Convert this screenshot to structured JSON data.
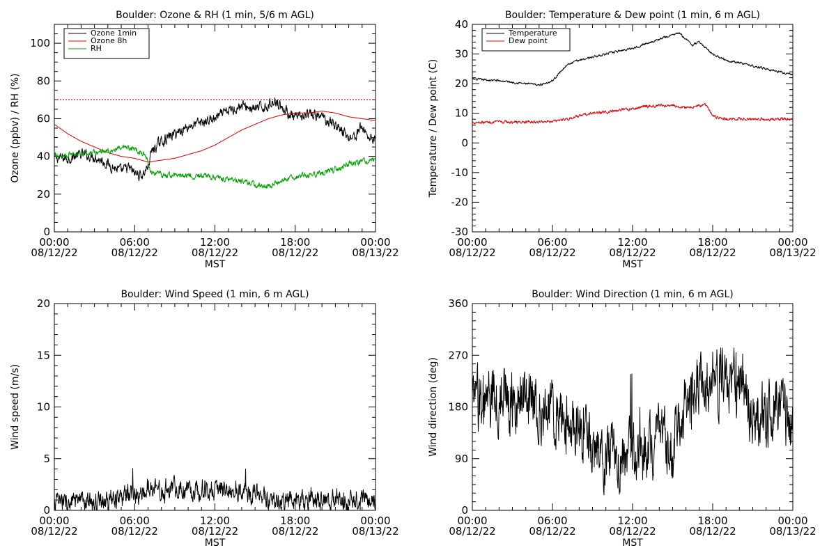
{
  "chart_data": [
    {
      "type": "line",
      "title": "Boulder: Ozone & RH (1 min, 5/6 m AGL)",
      "xlabel": "MST",
      "ylabel": "Ozone (ppbv) / RH (%)",
      "x_ticks": [
        {
          "time": "00:00",
          "date": "08/12/22"
        },
        {
          "time": "06:00",
          "date": "08/12/22"
        },
        {
          "time": "12:00",
          "date": "08/12/22"
        },
        {
          "time": "18:00",
          "date": "08/12/22"
        },
        {
          "time": "00:00",
          "date": "08/13/22"
        }
      ],
      "xlim_hours": [
        0,
        24
      ],
      "ylim": [
        0,
        110
      ],
      "y_ticks": [
        0,
        20,
        40,
        60,
        80,
        100
      ],
      "y_minor_step": 5,
      "grid": false,
      "legend_position": "top-left",
      "reference_line": {
        "y": 70,
        "color": "#dd0000",
        "style": "dotted"
      },
      "series": [
        {
          "name": "Ozone 1min",
          "color": "#000000",
          "noise": 2.2,
          "points": [
            [
              0,
              39
            ],
            [
              1,
              39
            ],
            [
              2,
              41
            ],
            [
              3,
              40
            ],
            [
              4,
              36
            ],
            [
              5,
              32
            ],
            [
              5.5,
              34
            ],
            [
              6,
              31
            ],
            [
              6.6,
              30
            ],
            [
              7,
              35
            ],
            [
              7.3,
              43
            ],
            [
              8,
              48
            ],
            [
              9,
              52
            ],
            [
              10,
              56
            ],
            [
              11,
              58
            ],
            [
              12,
              60
            ],
            [
              13,
              64
            ],
            [
              14,
              67
            ],
            [
              15,
              65
            ],
            [
              16,
              67
            ],
            [
              16.6,
              70
            ],
            [
              17,
              66
            ],
            [
              18,
              60
            ],
            [
              19,
              62
            ],
            [
              20,
              61
            ],
            [
              21,
              57
            ],
            [
              22,
              50
            ],
            [
              22.5,
              51
            ],
            [
              23,
              56
            ],
            [
              23.5,
              50
            ],
            [
              24,
              50
            ]
          ]
        },
        {
          "name": "Ozone 8h",
          "color": "#dd0000",
          "noise": 0,
          "points": [
            [
              0,
              57
            ],
            [
              1,
              52
            ],
            [
              2,
              48
            ],
            [
              3,
              45
            ],
            [
              4,
              42
            ],
            [
              5,
              40
            ],
            [
              6,
              39
            ],
            [
              7,
              37
            ],
            [
              8,
              38
            ],
            [
              9,
              39
            ],
            [
              10,
              41
            ],
            [
              11,
              43
            ],
            [
              12,
              46
            ],
            [
              13,
              50
            ],
            [
              14,
              54
            ],
            [
              15,
              57
            ],
            [
              16,
              60
            ],
            [
              17,
              62
            ],
            [
              18,
              63
            ],
            [
              19,
              63
            ],
            [
              20,
              64
            ],
            [
              21,
              63
            ],
            [
              22,
              61
            ],
            [
              23,
              60
            ],
            [
              24,
              59
            ]
          ]
        },
        {
          "name": "RH",
          "color": "#00a000",
          "noise": 1.2,
          "points": [
            [
              0,
              40
            ],
            [
              1,
              41
            ],
            [
              2,
              42
            ],
            [
              3,
              42
            ],
            [
              4,
              43
            ],
            [
              5,
              44
            ],
            [
              6,
              44
            ],
            [
              6.8,
              41
            ],
            [
              7.2,
              32
            ],
            [
              8,
              30
            ],
            [
              10,
              30
            ],
            [
              12,
              29
            ],
            [
              14,
              27
            ],
            [
              15,
              25
            ],
            [
              16,
              24
            ],
            [
              17,
              27
            ],
            [
              18,
              29
            ],
            [
              19,
              30
            ],
            [
              20,
              31
            ],
            [
              21,
              33
            ],
            [
              22,
              36
            ],
            [
              23,
              37
            ],
            [
              24,
              38
            ]
          ]
        }
      ]
    },
    {
      "type": "line",
      "title": "Boulder: Temperature & Dew point (1 min, 6 m AGL)",
      "xlabel": "MST",
      "ylabel": "Temperature / Dew point (C)",
      "x_ticks": [
        {
          "time": "00:00",
          "date": "08/12/22"
        },
        {
          "time": "06:00",
          "date": "08/12/22"
        },
        {
          "time": "12:00",
          "date": "08/12/22"
        },
        {
          "time": "18:00",
          "date": "08/12/22"
        },
        {
          "time": "00:00",
          "date": "08/13/22"
        }
      ],
      "xlim_hours": [
        0,
        24
      ],
      "ylim": [
        -30,
        40
      ],
      "y_ticks": [
        -30,
        -20,
        -10,
        0,
        10,
        20,
        30,
        40
      ],
      "y_minor_step": 2,
      "grid": false,
      "legend_position": "top-left",
      "series": [
        {
          "name": "Temperature",
          "color": "#000000",
          "noise": 0.3,
          "points": [
            [
              0,
              21.5
            ],
            [
              2,
              21
            ],
            [
              4,
              20
            ],
            [
              5,
              19.5
            ],
            [
              6,
              21
            ],
            [
              7,
              26
            ],
            [
              8,
              28
            ],
            [
              9,
              29
            ],
            [
              10,
              30
            ],
            [
              11,
              31
            ],
            [
              12,
              32
            ],
            [
              13,
              33.5
            ],
            [
              14,
              35
            ],
            [
              15,
              36.5
            ],
            [
              15.5,
              37
            ],
            [
              16,
              35
            ],
            [
              16.5,
              33
            ],
            [
              17,
              34
            ],
            [
              18,
              30
            ],
            [
              19,
              28
            ],
            [
              20,
              27
            ],
            [
              21,
              26
            ],
            [
              22,
              25
            ],
            [
              23,
              24
            ],
            [
              24,
              23
            ]
          ]
        },
        {
          "name": "Dew point",
          "color": "#dd0000",
          "noise": 0.4,
          "points": [
            [
              0,
              7
            ],
            [
              2,
              7
            ],
            [
              4,
              7
            ],
            [
              5,
              7
            ],
            [
              6,
              7.5
            ],
            [
              7,
              8
            ],
            [
              8,
              9
            ],
            [
              9,
              10
            ],
            [
              10,
              10.5
            ],
            [
              11,
              11
            ],
            [
              12,
              11.5
            ],
            [
              13,
              12.5
            ],
            [
              14,
              12.5
            ],
            [
              15,
              12.5
            ],
            [
              16,
              12
            ],
            [
              17,
              12.5
            ],
            [
              17.5,
              13
            ],
            [
              18,
              9
            ],
            [
              19,
              8
            ],
            [
              20,
              8
            ],
            [
              21,
              8
            ],
            [
              22,
              8
            ],
            [
              23,
              8
            ],
            [
              24,
              8
            ]
          ]
        }
      ]
    },
    {
      "type": "line",
      "title": "Boulder: Wind Speed (1 min, 6 m AGL)",
      "xlabel": "MST",
      "ylabel": "Wind speed (m/s)",
      "x_ticks": [
        {
          "time": "00:00",
          "date": "08/12/22"
        },
        {
          "time": "06:00",
          "date": "08/12/22"
        },
        {
          "time": "12:00",
          "date": "08/12/22"
        },
        {
          "time": "18:00",
          "date": "08/12/22"
        },
        {
          "time": "00:00",
          "date": "08/13/22"
        }
      ],
      "xlim_hours": [
        0,
        24
      ],
      "ylim": [
        0,
        20
      ],
      "y_ticks": [
        0,
        5,
        10,
        15,
        20
      ],
      "y_minor_step": 1,
      "grid": false,
      "series": [
        {
          "color": "#000000",
          "noise": 0.8,
          "floor": 0,
          "points": [
            [
              0,
              0.8
            ],
            [
              2,
              0.7
            ],
            [
              4,
              1.0
            ],
            [
              6,
              1.5
            ],
            [
              8,
              2.0
            ],
            [
              10,
              2.2
            ],
            [
              11,
              2.0
            ],
            [
              12,
              2.0
            ],
            [
              14,
              2.0
            ],
            [
              16,
              1.0
            ],
            [
              18,
              1.0
            ],
            [
              19,
              1.2
            ],
            [
              20,
              1.0
            ],
            [
              22,
              0.8
            ],
            [
              24,
              1.2
            ]
          ]
        }
      ]
    },
    {
      "type": "line",
      "title": "Boulder: Wind Direction (1 min, 6 m AGL)",
      "xlabel": "MST",
      "ylabel": "Wind direction (deg)",
      "x_ticks": [
        {
          "time": "00:00",
          "date": "08/12/22"
        },
        {
          "time": "06:00",
          "date": "08/12/22"
        },
        {
          "time": "12:00",
          "date": "08/12/22"
        },
        {
          "time": "18:00",
          "date": "08/12/22"
        },
        {
          "time": "00:00",
          "date": "08/13/22"
        }
      ],
      "xlim_hours": [
        0,
        24
      ],
      "ylim": [
        0,
        360
      ],
      "y_ticks": [
        0,
        90,
        180,
        270,
        360
      ],
      "y_minor_step": 15,
      "grid": false,
      "series": [
        {
          "color": "#000000",
          "noise": 45,
          "floor": 0,
          "ceiling": 360,
          "points": [
            [
              0,
              180
            ],
            [
              2,
              200
            ],
            [
              4,
              190
            ],
            [
              6,
              170
            ],
            [
              8,
              130
            ],
            [
              10,
              100
            ],
            [
              12,
              90
            ],
            [
              14,
              110
            ],
            [
              15,
              100
            ],
            [
              16,
              200
            ],
            [
              17,
              220
            ],
            [
              18,
              230
            ],
            [
              20,
              220
            ],
            [
              21,
              180
            ],
            [
              22,
              170
            ],
            [
              23,
              190
            ],
            [
              24,
              140
            ]
          ]
        }
      ]
    }
  ]
}
